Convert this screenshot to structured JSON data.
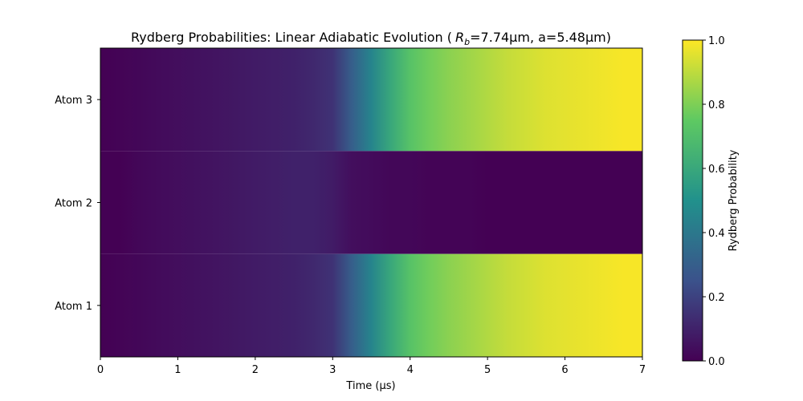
{
  "chart_data": {
    "type": "heatmap",
    "title_prefix": "Rydberg Probabilities: Linear Adiabatic Evolution (",
    "title_symbol": "R",
    "title_subscript": "b",
    "title_suffix": "=7.74µm, a=5.48µm)",
    "xlabel": "Time (µs)",
    "rows": [
      "Atom 3",
      "Atom 2",
      "Atom 1"
    ],
    "xlim": [
      0,
      7
    ],
    "x_ticks": [
      "0",
      "1",
      "2",
      "3",
      "4",
      "5",
      "6",
      "7"
    ],
    "time_samples": [
      0,
      0.25,
      0.5,
      0.75,
      1.0,
      1.25,
      1.5,
      1.75,
      2.0,
      2.25,
      2.5,
      2.75,
      3.0,
      3.25,
      3.5,
      3.75,
      4.0,
      4.25,
      4.5,
      4.75,
      5.0,
      5.25,
      5.5,
      5.75,
      6.0,
      6.25,
      6.5,
      6.75,
      7.0
    ],
    "series": [
      {
        "name": "Atom 3",
        "values": [
          0.0,
          0.01,
          0.02,
          0.03,
          0.04,
          0.05,
          0.06,
          0.07,
          0.08,
          0.09,
          0.1,
          0.12,
          0.15,
          0.3,
          0.45,
          0.6,
          0.72,
          0.78,
          0.82,
          0.85,
          0.88,
          0.91,
          0.93,
          0.95,
          0.96,
          0.97,
          0.98,
          0.99,
          0.99
        ]
      },
      {
        "name": "Atom 2",
        "values": [
          0.0,
          0.0,
          0.02,
          0.03,
          0.04,
          0.05,
          0.06,
          0.07,
          0.08,
          0.09,
          0.1,
          0.1,
          0.08,
          0.04,
          0.03,
          0.02,
          0.02,
          0.01,
          0.01,
          0.01,
          0.0,
          0.0,
          0.0,
          0.0,
          0.0,
          0.0,
          0.0,
          0.0,
          0.0
        ]
      },
      {
        "name": "Atom 1",
        "values": [
          0.0,
          0.01,
          0.02,
          0.03,
          0.04,
          0.05,
          0.06,
          0.07,
          0.08,
          0.09,
          0.1,
          0.12,
          0.15,
          0.3,
          0.45,
          0.6,
          0.72,
          0.78,
          0.82,
          0.85,
          0.88,
          0.91,
          0.93,
          0.95,
          0.96,
          0.97,
          0.98,
          0.99,
          0.99
        ]
      }
    ],
    "colorbar": {
      "label": "Rydberg Probability",
      "range": [
        0,
        1
      ],
      "ticks": [
        "0.0",
        "0.2",
        "0.4",
        "0.6",
        "0.8",
        "1.0"
      ],
      "colormap": "viridis",
      "colors": [
        "#440154",
        "#3b528b",
        "#21918c",
        "#5ec962",
        "#fde725"
      ]
    }
  }
}
